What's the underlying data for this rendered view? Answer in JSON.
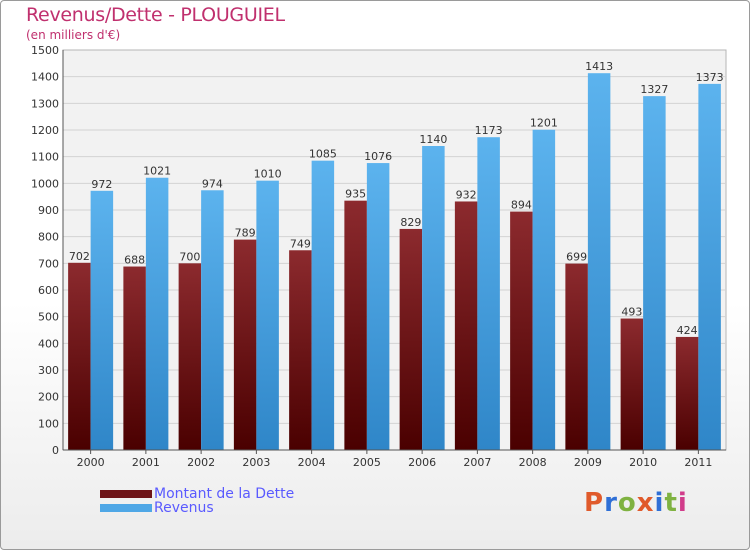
{
  "chart_data": {
    "type": "bar",
    "title": "Revenus/Dette - PLOUGUIEL",
    "subtitle": "(en milliers d'€)",
    "categories": [
      "2000",
      "2001",
      "2002",
      "2003",
      "2004",
      "2005",
      "2006",
      "2007",
      "2008",
      "2009",
      "2010",
      "2011"
    ],
    "series": [
      {
        "name": "Montant de la Dette",
        "values": [
          702,
          688,
          700,
          789,
          749,
          935,
          829,
          932,
          894,
          699,
          493,
          424
        ],
        "color": "#6e1418"
      },
      {
        "name": "Revenus",
        "values": [
          972,
          1021,
          974,
          1010,
          1085,
          1076,
          1140,
          1173,
          1201,
          1413,
          1327,
          1373
        ],
        "color": "#4fa7e6"
      }
    ],
    "ylim": [
      0,
      1500
    ],
    "yticks": [
      0,
      100,
      200,
      300,
      400,
      500,
      600,
      700,
      800,
      900,
      1000,
      1100,
      1200,
      1300,
      1400,
      1500
    ],
    "grid": true,
    "legend_placement": "bottom-left"
  },
  "brand": {
    "text": "Proxiti",
    "colors": [
      "#e05a2b",
      "#2f6fd6",
      "#7fb241",
      "#e05a2b",
      "#2f6fd6",
      "#7fb241",
      "#d13c8a"
    ]
  }
}
